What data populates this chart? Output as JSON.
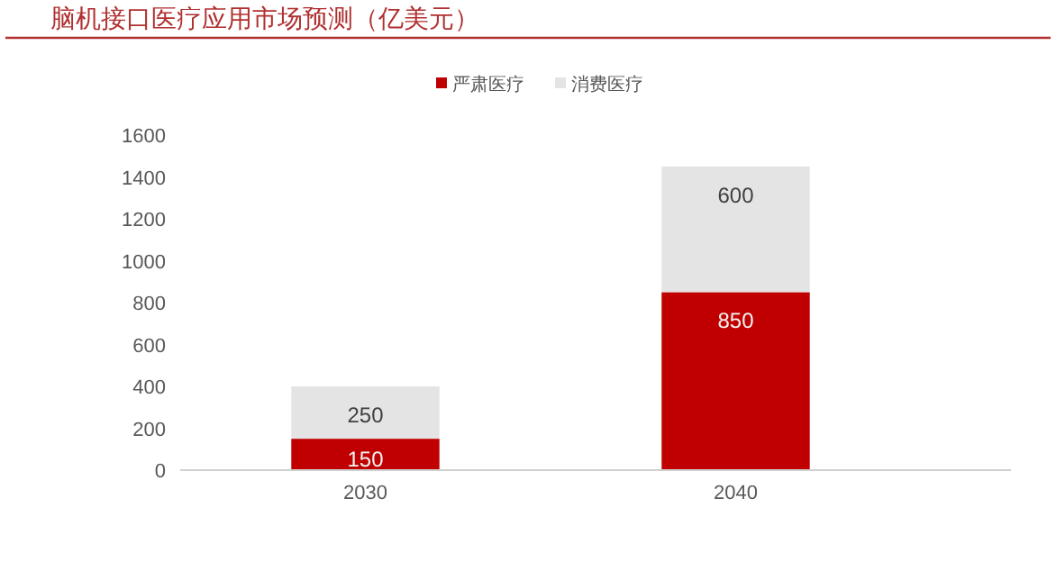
{
  "chart_data": {
    "type": "bar",
    "title": "脑机接口医疗应用市场预测（亿美元）",
    "categories": [
      "2030",
      "2040"
    ],
    "stacked": true,
    "series": [
      {
        "name": "严肃医疗",
        "color": "#c00000",
        "values": [
          150,
          850
        ]
      },
      {
        "name": "消费医疗",
        "color": "#e4e4e4",
        "values": [
          250,
          600
        ]
      }
    ],
    "ylim": [
      0,
      1600
    ],
    "yticks": [
      0,
      200,
      400,
      600,
      800,
      1000,
      1200,
      1400,
      1600
    ],
    "grid": false,
    "legend": "top",
    "data_labels": true
  }
}
